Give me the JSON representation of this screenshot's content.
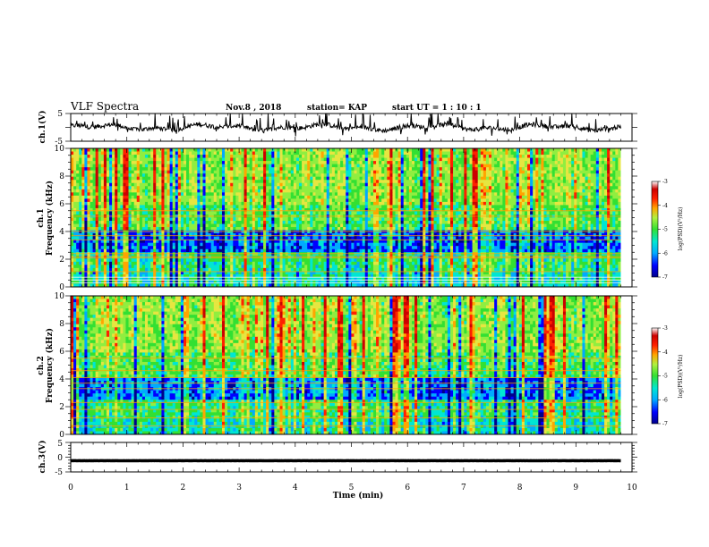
{
  "header": {
    "title": "VLF Spectra",
    "date": "Nov.8  , 2018",
    "station": "station= KAP",
    "start": "start  UT =   1 : 10 : 1"
  },
  "colors": {
    "colormap": [
      "#00008b",
      "#0000ff",
      "#00aaff",
      "#00e6d2",
      "#33e033",
      "#90ee40",
      "#e6e640",
      "#ffa500",
      "#ff2000",
      "#cc0000",
      "#ffffff"
    ]
  },
  "chart_data": [
    {
      "id": "ch1-voltage",
      "type": "line",
      "ylabel": "ch.1(V)",
      "ylim": [
        -5,
        5
      ],
      "yticks": [
        "5",
        "-5"
      ],
      "xlim": [
        0,
        10
      ],
      "description_of_trace": "noisy waveform spanning roughly 1.5 V peak, centered near 0 V, ending near 9.8 min"
    },
    {
      "id": "ch1-spectrogram",
      "type": "heatmap",
      "ylabel": "ch.1",
      "ylabel2": "Frequency (kHz)",
      "ylim": [
        0,
        10
      ],
      "yticks": [
        "0",
        "2",
        "4",
        "6",
        "8",
        "10"
      ],
      "xlim": [
        0,
        10
      ],
      "colorbar": {
        "label": "log(PSD)(V²/Hz)",
        "range": [
          -7,
          -3
        ],
        "ticks": [
          "-3",
          "-4",
          "-5",
          "-6",
          "-7"
        ]
      }
    },
    {
      "id": "ch2-spectrogram",
      "type": "heatmap",
      "ylabel": "ch.2",
      "ylabel2": "Frequency (kHz)",
      "ylim": [
        0,
        10
      ],
      "yticks": [
        "0",
        "2",
        "4",
        "6",
        "8",
        "10"
      ],
      "xlim": [
        0,
        10
      ],
      "colorbar": {
        "label": "log(PSD)(V²/Hz)",
        "range": [
          -7,
          -3
        ],
        "ticks": [
          "-3",
          "-4",
          "-5",
          "-6",
          "-7"
        ]
      }
    },
    {
      "id": "ch3-voltage",
      "type": "line",
      "ylabel": "ch.3(V)",
      "ylim": [
        -5,
        5
      ],
      "yticks": [
        "5",
        "0",
        "-5"
      ],
      "xlim": [
        0,
        10
      ],
      "trace_value_v": -1.2
    }
  ],
  "xaxis": {
    "label": "Time  (min)",
    "ticks": [
      "0",
      "1",
      "2",
      "3",
      "4",
      "5",
      "6",
      "7",
      "8",
      "9",
      "10"
    ],
    "xlim": [
      0,
      10
    ],
    "data_end_min": 9.8
  }
}
